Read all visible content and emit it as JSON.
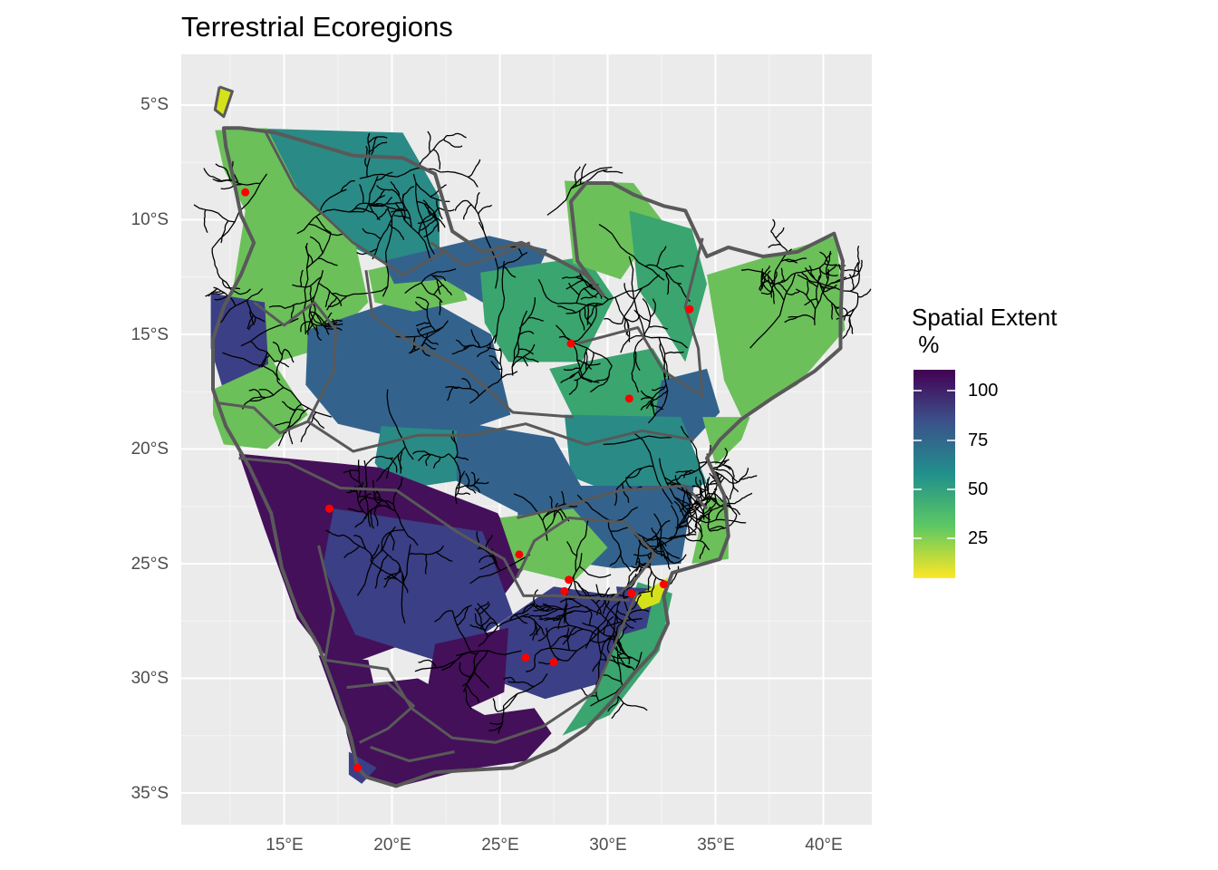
{
  "title": "Terrestrial Ecoregions",
  "axes": {
    "y_ticks": [
      "5°S",
      "10°S",
      "15°S",
      "20°S",
      "25°S",
      "30°S",
      "35°S"
    ],
    "x_ticks": [
      "15°E",
      "20°E",
      "25°E",
      "30°E",
      "35°E",
      "40°E"
    ]
  },
  "legend": {
    "title": "Spatial Extent\n %",
    "ticks": [
      "100",
      "75",
      "50",
      "25"
    ],
    "colors": [
      "#440154",
      "#3b528b",
      "#21908c",
      "#5dc863",
      "#fde725"
    ]
  },
  "map": {
    "region": "Southern Africa",
    "fill_colors": {
      "very_high": "#44105a",
      "high": "#3b3f85",
      "mid_high": "#33638d",
      "mid": "#2a8a86",
      "mid_low": "#3aa56f",
      "low": "#6cc05a",
      "very_low": "#d5e21a"
    },
    "point_color": "#ff0000",
    "river_color": "#000000",
    "border_color": "#595959",
    "points": [
      {
        "lon": 13.2,
        "lat": -8.8
      },
      {
        "lon": 17.1,
        "lat": -22.6
      },
      {
        "lon": 25.9,
        "lat": -24.6
      },
      {
        "lon": 28.2,
        "lat": -25.7
      },
      {
        "lon": 28.0,
        "lat": -26.2
      },
      {
        "lon": 31.1,
        "lat": -26.3
      },
      {
        "lon": 32.6,
        "lat": -25.9
      },
      {
        "lon": 26.2,
        "lat": -29.1
      },
      {
        "lon": 27.5,
        "lat": -29.3
      },
      {
        "lon": 18.4,
        "lat": -33.9
      },
      {
        "lon": 28.3,
        "lat": -15.4
      },
      {
        "lon": 31.0,
        "lat": -17.8
      },
      {
        "lon": 33.8,
        "lat": -13.9
      }
    ]
  }
}
